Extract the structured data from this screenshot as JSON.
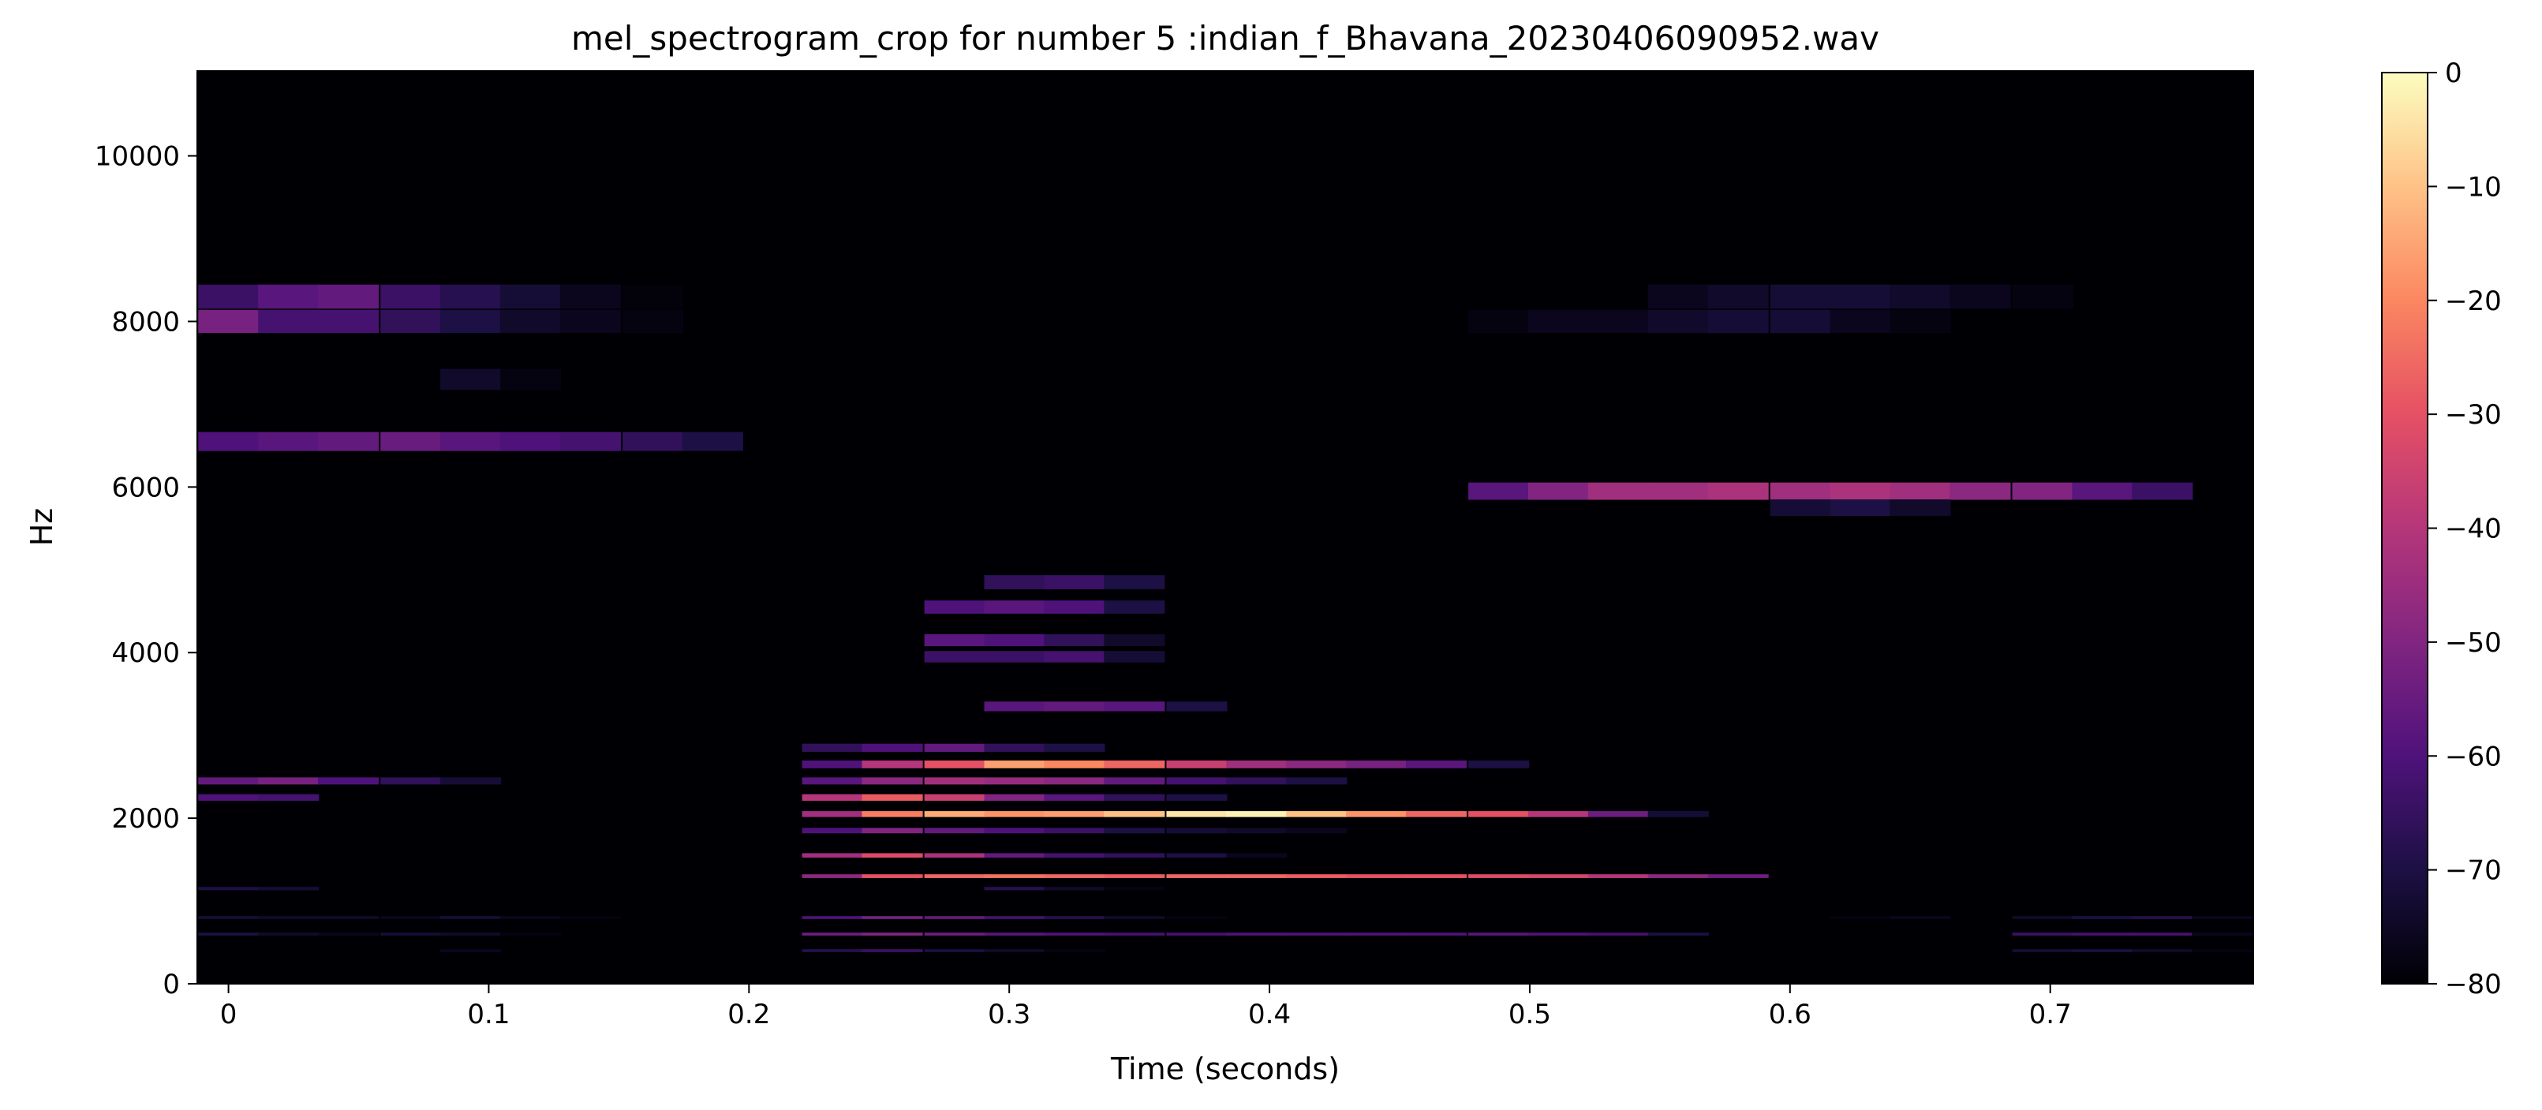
{
  "chart_data": {
    "type": "heatmap",
    "title": "mel_spectrogram_crop for number 5 :indian_f_Bhavana_20230406090952.wav",
    "xlabel": "Time (seconds)",
    "ylabel": "Hz",
    "xlim": [
      -0.012,
      0.778
    ],
    "ylim": [
      0,
      11025
    ],
    "x_ticks": [
      0,
      0.1,
      0.2,
      0.3,
      0.4,
      0.5,
      0.6,
      0.7
    ],
    "x_tick_labels": [
      "0",
      "0.1",
      "0.2",
      "0.3",
      "0.4",
      "0.5",
      "0.6",
      "0.7"
    ],
    "y_ticks": [
      0,
      2000,
      4000,
      6000,
      8000,
      10000
    ],
    "y_tick_labels": [
      "0",
      "2000",
      "4000",
      "6000",
      "8000",
      "10000"
    ],
    "colormap": "magma",
    "colorbar": {
      "range": [
        -80,
        0
      ],
      "ticks": [
        0,
        -10,
        -20,
        -30,
        -40,
        -50,
        -60,
        -70,
        -80
      ],
      "tick_labels": [
        "0",
        "−10",
        "−20",
        "−30",
        "−40",
        "−50",
        "−60",
        "−70",
        "−80"
      ]
    },
    "background_db": -80,
    "time_frames": [
      0.0,
      0.023,
      0.046,
      0.07,
      0.093,
      0.116,
      0.139,
      0.163,
      0.186,
      0.209,
      0.232,
      0.255,
      0.279,
      0.302,
      0.325,
      0.348,
      0.372,
      0.395,
      0.418,
      0.441,
      0.464,
      0.488,
      0.511,
      0.534,
      0.557,
      0.58,
      0.604,
      0.627,
      0.65,
      0.673,
      0.697,
      0.72,
      0.743,
      0.766
    ],
    "frame_width_s": 0.0232,
    "bands": [
      {
        "hz": 8300,
        "db": [
          -64,
          -58,
          -56,
          -64,
          -68,
          -72,
          -76,
          -79,
          -80,
          -80,
          -80,
          -80,
          -80,
          -80,
          -80,
          -80,
          -80,
          -80,
          -80,
          -80,
          -80,
          -80,
          -80,
          -80,
          -76,
          -74,
          -72,
          -72,
          -74,
          -76,
          -78,
          -80,
          -80,
          -80
        ]
      },
      {
        "hz": 8000,
        "db": [
          -52,
          -62,
          -62,
          -66,
          -70,
          -74,
          -76,
          -78,
          -80,
          -80,
          -80,
          -80,
          -80,
          -80,
          -80,
          -80,
          -80,
          -80,
          -80,
          -80,
          -80,
          -78,
          -76,
          -76,
          -74,
          -72,
          -72,
          -76,
          -78,
          -80,
          -80,
          -80,
          -80,
          -80
        ]
      },
      {
        "hz": 7300,
        "db": [
          -80,
          -80,
          -80,
          -80,
          -74,
          -78,
          -80,
          -80,
          -80,
          -80,
          -80,
          -80,
          -80,
          -80,
          -80,
          -80,
          -80,
          -80,
          -80,
          -80,
          -80,
          -80,
          -80,
          -80,
          -80,
          -80,
          -80,
          -80,
          -80,
          -80,
          -80,
          -80,
          -80,
          -80
        ]
      },
      {
        "hz": 6550,
        "db": [
          -60,
          -58,
          -56,
          -55,
          -58,
          -60,
          -62,
          -66,
          -70,
          -80,
          -80,
          -80,
          -80,
          -80,
          -80,
          -80,
          -80,
          -80,
          -80,
          -80,
          -80,
          -80,
          -80,
          -80,
          -80,
          -80,
          -80,
          -80,
          -80,
          -80,
          -80,
          -80,
          -80,
          -80
        ]
      },
      {
        "hz": 5950,
        "db": [
          -80,
          -80,
          -80,
          -80,
          -80,
          -80,
          -80,
          -80,
          -80,
          -80,
          -80,
          -80,
          -80,
          -80,
          -80,
          -80,
          -80,
          -80,
          -80,
          -80,
          -80,
          -58,
          -50,
          -44,
          -44,
          -42,
          -44,
          -42,
          -44,
          -48,
          -50,
          -58,
          -64,
          -80
        ]
      },
      {
        "hz": 5750,
        "db": [
          -80,
          -80,
          -80,
          -80,
          -80,
          -80,
          -80,
          -80,
          -80,
          -80,
          -80,
          -80,
          -80,
          -80,
          -80,
          -80,
          -80,
          -80,
          -80,
          -80,
          -80,
          -80,
          -80,
          -80,
          -80,
          -80,
          -72,
          -70,
          -74,
          -80,
          -80,
          -80,
          -80,
          -80
        ]
      },
      {
        "hz": 4850,
        "db": [
          -80,
          -80,
          -80,
          -80,
          -80,
          -80,
          -80,
          -80,
          -80,
          -80,
          -80,
          -80,
          -80,
          -66,
          -64,
          -70,
          -80,
          -80,
          -80,
          -80,
          -80,
          -80,
          -80,
          -80,
          -80,
          -80,
          -80,
          -80,
          -80,
          -80,
          -80,
          -80,
          -80,
          -80
        ]
      },
      {
        "hz": 4550,
        "db": [
          -80,
          -80,
          -80,
          -80,
          -80,
          -80,
          -80,
          -80,
          -80,
          -80,
          -80,
          -80,
          -60,
          -58,
          -60,
          -70,
          -80,
          -80,
          -80,
          -80,
          -80,
          -80,
          -80,
          -80,
          -80,
          -80,
          -80,
          -80,
          -80,
          -80,
          -80,
          -80,
          -80,
          -80
        ]
      },
      {
        "hz": 4150,
        "db": [
          -80,
          -80,
          -80,
          -80,
          -80,
          -80,
          -80,
          -80,
          -80,
          -80,
          -80,
          -80,
          -58,
          -60,
          -66,
          -74,
          -80,
          -80,
          -80,
          -80,
          -80,
          -80,
          -80,
          -80,
          -80,
          -80,
          -80,
          -80,
          -80,
          -80,
          -80,
          -80,
          -80,
          -80
        ]
      },
      {
        "hz": 3950,
        "db": [
          -80,
          -80,
          -80,
          -80,
          -80,
          -80,
          -80,
          -80,
          -80,
          -80,
          -80,
          -80,
          -64,
          -64,
          -62,
          -72,
          -80,
          -80,
          -80,
          -80,
          -80,
          -80,
          -80,
          -80,
          -80,
          -80,
          -80,
          -80,
          -80,
          -80,
          -80,
          -80,
          -80,
          -80
        ]
      },
      {
        "hz": 3350,
        "db": [
          -80,
          -80,
          -80,
          -80,
          -80,
          -80,
          -80,
          -80,
          -80,
          -80,
          -80,
          -80,
          -80,
          -58,
          -56,
          -58,
          -70,
          -80,
          -80,
          -80,
          -80,
          -80,
          -80,
          -80,
          -80,
          -80,
          -80,
          -80,
          -80,
          -80,
          -80,
          -80,
          -80,
          -80
        ]
      },
      {
        "hz": 2850,
        "db": [
          -80,
          -80,
          -80,
          -80,
          -80,
          -80,
          -80,
          -80,
          -80,
          -80,
          -66,
          -60,
          -56,
          -66,
          -70,
          -80,
          -80,
          -80,
          -80,
          -80,
          -80,
          -80,
          -80,
          -80,
          -80,
          -80,
          -80,
          -80,
          -80,
          -80,
          -80,
          -80,
          -80,
          -80
        ]
      },
      {
        "hz": 2650,
        "db": [
          -80,
          -80,
          -80,
          -80,
          -80,
          -80,
          -80,
          -80,
          -80,
          -80,
          -60,
          -40,
          -30,
          -16,
          -20,
          -26,
          -36,
          -44,
          -48,
          -52,
          -58,
          -70,
          -80,
          -80,
          -80,
          -80,
          -80,
          -80,
          -80,
          -80,
          -80,
          -80,
          -80,
          -80
        ]
      },
      {
        "hz": 2450,
        "db": [
          -56,
          -52,
          -60,
          -66,
          -72,
          -80,
          -80,
          -80,
          -80,
          -80,
          -58,
          -48,
          -44,
          -46,
          -48,
          -56,
          -62,
          -66,
          -70,
          -80,
          -80,
          -80,
          -80,
          -80,
          -80,
          -80,
          -80,
          -80,
          -80,
          -80,
          -80,
          -80,
          -80,
          -80
        ]
      },
      {
        "hz": 2250,
        "db": [
          -60,
          -62,
          -80,
          -80,
          -80,
          -80,
          -80,
          -80,
          -80,
          -80,
          -40,
          -28,
          -36,
          -50,
          -58,
          -66,
          -70,
          -80,
          -80,
          -80,
          -80,
          -80,
          -80,
          -80,
          -80,
          -80,
          -80,
          -80,
          -80,
          -80,
          -80,
          -80,
          -80,
          -80
        ]
      },
      {
        "hz": 2050,
        "db": [
          -80,
          -80,
          -80,
          -80,
          -80,
          -80,
          -80,
          -80,
          -80,
          -80,
          -44,
          -22,
          -14,
          -18,
          -16,
          -10,
          -4,
          -2,
          -10,
          -18,
          -26,
          -30,
          -40,
          -54,
          -72,
          -80,
          -80,
          -80,
          -80,
          -80,
          -80,
          -80,
          -80,
          -80
        ]
      },
      {
        "hz": 1850,
        "db": [
          -80,
          -80,
          -80,
          -80,
          -80,
          -80,
          -80,
          -80,
          -80,
          -80,
          -60,
          -50,
          -56,
          -60,
          -64,
          -70,
          -72,
          -74,
          -76,
          -80,
          -80,
          -80,
          -80,
          -80,
          -80,
          -80,
          -80,
          -80,
          -80,
          -80,
          -80,
          -80,
          -80,
          -80
        ]
      },
      {
        "hz": 1550,
        "db": [
          -80,
          -80,
          -80,
          -80,
          -80,
          -80,
          -80,
          -80,
          -80,
          -80,
          -44,
          -32,
          -42,
          -56,
          -62,
          -66,
          -70,
          -76,
          -80,
          -80,
          -80,
          -80,
          -80,
          -80,
          -80,
          -80,
          -80,
          -80,
          -80,
          -80,
          -80,
          -80,
          -80,
          -80
        ]
      },
      {
        "hz": 1300,
        "db": [
          -80,
          -80,
          -80,
          -80,
          -80,
          -80,
          -80,
          -80,
          -80,
          -80,
          -48,
          -30,
          -26,
          -24,
          -26,
          -28,
          -26,
          -26,
          -28,
          -30,
          -30,
          -32,
          -34,
          -40,
          -48,
          -54,
          -80,
          -80,
          -80,
          -80,
          -80,
          -80,
          -80,
          -80
        ]
      },
      {
        "hz": 1150,
        "db": [
          -70,
          -72,
          -80,
          -80,
          -80,
          -80,
          -80,
          -80,
          -80,
          -80,
          -80,
          -80,
          -80,
          -68,
          -74,
          -78,
          -80,
          -80,
          -80,
          -80,
          -80,
          -80,
          -80,
          -80,
          -80,
          -80,
          -80,
          -80,
          -80,
          -80,
          -80,
          -80,
          -80,
          -80
        ]
      },
      {
        "hz": 800,
        "db": [
          -72,
          -74,
          -74,
          -76,
          -72,
          -76,
          -78,
          -80,
          -80,
          -80,
          -60,
          -52,
          -56,
          -62,
          -68,
          -74,
          -78,
          -80,
          -80,
          -80,
          -80,
          -80,
          -80,
          -80,
          -80,
          -80,
          -80,
          -78,
          -76,
          -80,
          -74,
          -70,
          -68,
          -76
        ]
      },
      {
        "hz": 600,
        "db": [
          -70,
          -74,
          -76,
          -72,
          -74,
          -78,
          -80,
          -80,
          -80,
          -80,
          -54,
          -50,
          -54,
          -58,
          -60,
          -62,
          -62,
          -60,
          -60,
          -60,
          -60,
          -58,
          -60,
          -62,
          -70,
          -80,
          -80,
          -80,
          -80,
          -80,
          -64,
          -62,
          -62,
          -76
        ]
      },
      {
        "hz": 400,
        "db": [
          -80,
          -80,
          -80,
          -80,
          -76,
          -80,
          -80,
          -80,
          -80,
          -80,
          -68,
          -64,
          -70,
          -74,
          -78,
          -80,
          -80,
          -80,
          -80,
          -80,
          -80,
          -80,
          -80,
          -80,
          -80,
          -80,
          -80,
          -80,
          -80,
          -80,
          -72,
          -70,
          -74,
          -78
        ]
      }
    ]
  }
}
